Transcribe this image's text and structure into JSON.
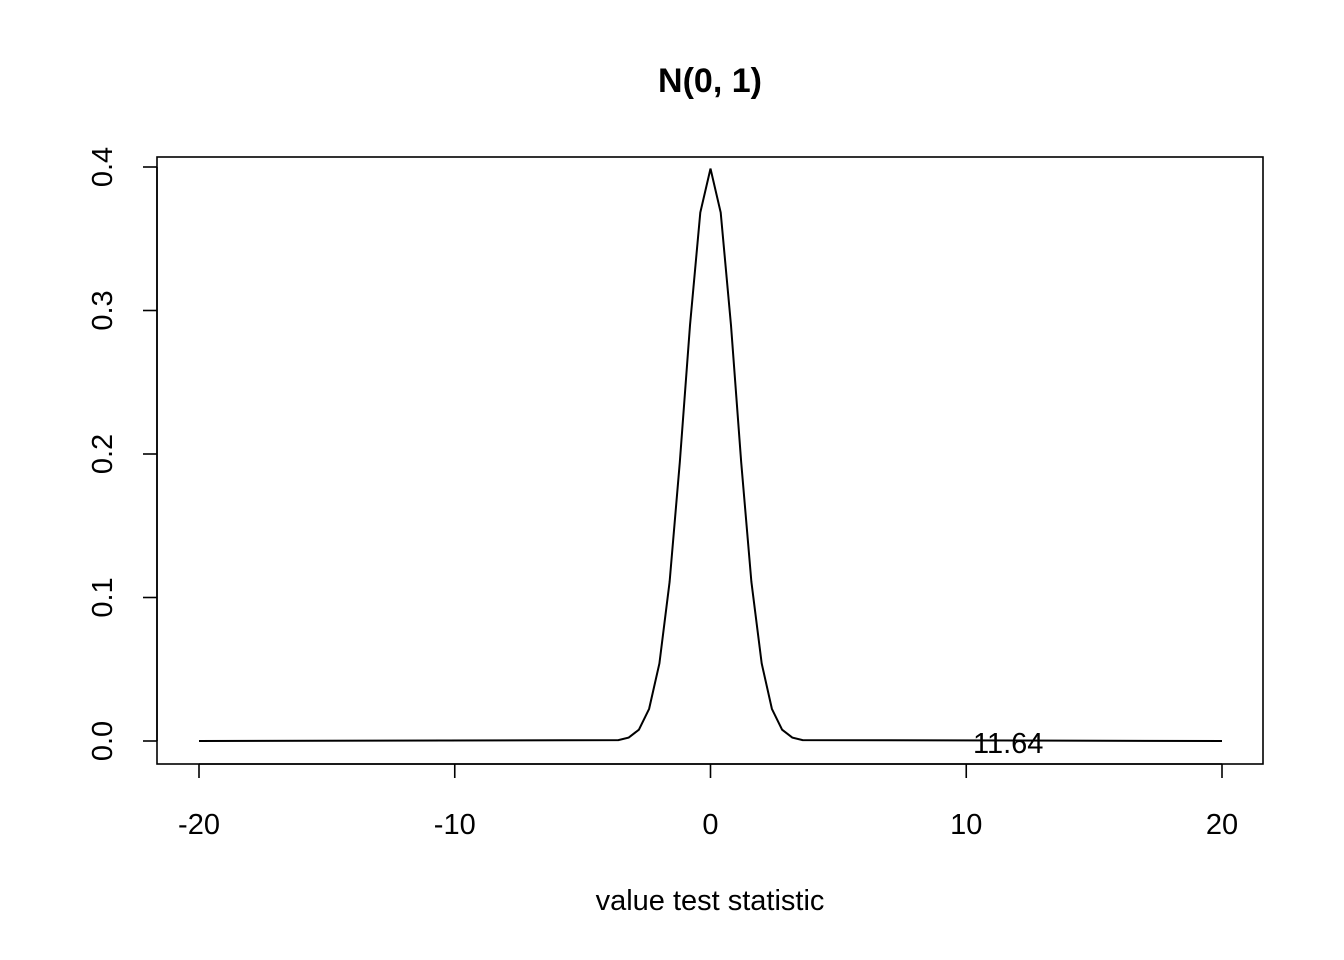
{
  "chart_data": {
    "type": "line",
    "title": "N(0, 1)",
    "xlabel": "value test statistic",
    "ylabel": "",
    "xlim": [
      -20,
      20
    ],
    "ylim": [
      0,
      0.4
    ],
    "x_ticks": [
      -20,
      -10,
      0,
      10,
      20
    ],
    "x_tick_labels": [
      "-20",
      "-10",
      "0",
      "10",
      "20"
    ],
    "y_ticks": [
      0,
      0.1,
      0.2,
      0.3,
      0.4
    ],
    "y_tick_labels": [
      "0.0",
      "0.1",
      "0.2",
      "0.3",
      "0.4"
    ],
    "grid": false,
    "legend": "none",
    "series": [
      {
        "x": [
          -20,
          -3.6,
          -3.2,
          -2.8,
          -2.4,
          -2.0,
          -1.6,
          -1.2,
          -0.8,
          -0.4,
          0.0,
          0.4,
          0.8,
          1.2,
          1.6,
          2.0,
          2.4,
          2.8,
          3.2,
          3.6,
          20
        ],
        "y": [
          0.0,
          0.0006,
          0.0024,
          0.0079,
          0.0224,
          0.054,
          0.1109,
          0.1942,
          0.2897,
          0.3683,
          0.3989,
          0.3683,
          0.2897,
          0.1942,
          0.1109,
          0.054,
          0.0224,
          0.0079,
          0.0024,
          0.0006,
          0.0
        ]
      }
    ],
    "annotations": [
      {
        "text": "11.64",
        "x": 11.64,
        "y": 0.0
      }
    ]
  }
}
